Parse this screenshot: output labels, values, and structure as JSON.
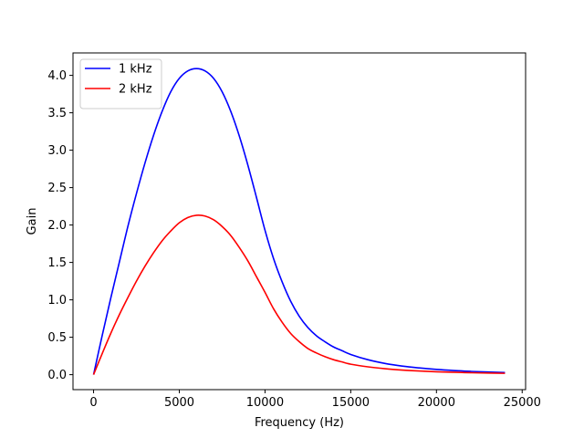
{
  "chart_data": {
    "type": "line",
    "xlabel": "Frequency (Hz)",
    "ylabel": "Gain",
    "xlim": [
      -1200,
      25200
    ],
    "ylim": [
      -0.2,
      4.3
    ],
    "xticks": [
      0,
      5000,
      10000,
      15000,
      20000,
      25000
    ],
    "yticks": [
      0.0,
      0.5,
      1.0,
      1.5,
      2.0,
      2.5,
      3.0,
      3.5,
      4.0
    ],
    "xtick_labels": [
      "0",
      "5000",
      "10000",
      "15000",
      "20000",
      "25000"
    ],
    "ytick_labels": [
      "0.0",
      "0.5",
      "1.0",
      "1.5",
      "2.0",
      "2.5",
      "3.0",
      "3.5",
      "4.0"
    ],
    "grid": false,
    "legend_position": "top-left",
    "x": [
      0,
      500,
      1000,
      1500,
      2000,
      2500,
      3000,
      3500,
      4000,
      4500,
      5000,
      5500,
      6000,
      6500,
      7000,
      7500,
      8000,
      8500,
      9000,
      9500,
      10000,
      10500,
      11000,
      11500,
      12000,
      12500,
      13000,
      13500,
      14000,
      14500,
      15000,
      16000,
      17000,
      18000,
      19000,
      20000,
      21000,
      22000,
      23000,
      24000
    ],
    "series": [
      {
        "name": "1 kHz",
        "color": "#0000ff",
        "values": [
          0.0,
          0.52,
          1.02,
          1.5,
          1.98,
          2.42,
          2.83,
          3.2,
          3.52,
          3.78,
          3.96,
          4.06,
          4.09,
          4.06,
          3.96,
          3.78,
          3.52,
          3.19,
          2.8,
          2.37,
          1.93,
          1.55,
          1.24,
          0.98,
          0.78,
          0.63,
          0.52,
          0.44,
          0.37,
          0.32,
          0.27,
          0.2,
          0.15,
          0.115,
          0.09,
          0.07,
          0.055,
          0.044,
          0.035,
          0.028
        ]
      },
      {
        "name": "2 kHz",
        "color": "#ff0000",
        "values": [
          0.0,
          0.28,
          0.55,
          0.8,
          1.03,
          1.25,
          1.45,
          1.63,
          1.79,
          1.92,
          2.03,
          2.1,
          2.13,
          2.12,
          2.07,
          1.98,
          1.86,
          1.7,
          1.52,
          1.31,
          1.1,
          0.88,
          0.7,
          0.55,
          0.44,
          0.35,
          0.29,
          0.24,
          0.2,
          0.17,
          0.14,
          0.105,
          0.08,
          0.062,
          0.049,
          0.039,
          0.032,
          0.026,
          0.022,
          0.018
        ]
      }
    ]
  }
}
